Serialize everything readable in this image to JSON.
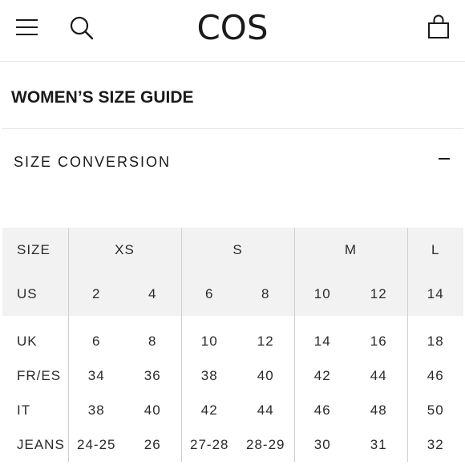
{
  "header": {
    "logo": "COS"
  },
  "page_title": "WOMEN’S SIZE GUIDE",
  "section": {
    "title": "SIZE CONVERSION"
  },
  "table": {
    "size_row": {
      "label": "SIZE",
      "groups": [
        "XS",
        "S",
        "M",
        "L"
      ]
    },
    "us_row": {
      "label": "US",
      "values": [
        "2",
        "4",
        "6",
        "8",
        "10",
        "12",
        "14"
      ]
    },
    "rows": [
      {
        "label": "UK",
        "values": [
          "6",
          "8",
          "10",
          "12",
          "14",
          "16",
          "18"
        ]
      },
      {
        "label": "FR/ES",
        "values": [
          "34",
          "36",
          "38",
          "40",
          "42",
          "44",
          "46"
        ]
      },
      {
        "label": "IT",
        "values": [
          "38",
          "40",
          "42",
          "44",
          "46",
          "48",
          "50"
        ]
      },
      {
        "label": "JEANS",
        "values": [
          "24-25",
          "26",
          "27-28",
          "28-29",
          "30",
          "31",
          "32"
        ]
      }
    ]
  }
}
